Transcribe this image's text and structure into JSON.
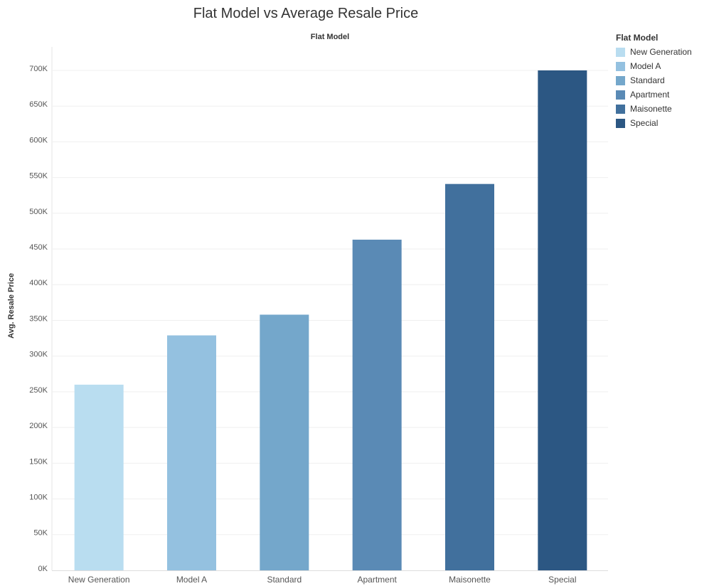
{
  "chart_data": {
    "type": "bar",
    "title": "Flat Model vs Average Resale Price",
    "header_label": "Flat Model",
    "ylabel": "Avg. Resale Price",
    "categories": [
      "New Generation",
      "Model A",
      "Standard",
      "Apartment",
      "Maisonette",
      "Special"
    ],
    "values": [
      260000,
      329000,
      358000,
      463000,
      541000,
      700000
    ],
    "colors": [
      "#b9ddf0",
      "#94c1e0",
      "#74a7cb",
      "#5a8ab5",
      "#41709d",
      "#2c5783"
    ],
    "ylim": [
      0,
      700000
    ],
    "yticks": [
      0,
      50000,
      100000,
      150000,
      200000,
      250000,
      300000,
      350000,
      400000,
      450000,
      500000,
      550000,
      600000,
      650000,
      700000
    ],
    "ytick_labels": [
      "0K",
      "50K",
      "100K",
      "150K",
      "200K",
      "250K",
      "300K",
      "350K",
      "400K",
      "450K",
      "500K",
      "550K",
      "600K",
      "650K",
      "700K"
    ],
    "grid": true,
    "legend": {
      "title": "Flat Model",
      "position": "top-right",
      "entries": [
        "New Generation",
        "Model A",
        "Standard",
        "Apartment",
        "Maisonette",
        "Special"
      ]
    }
  }
}
